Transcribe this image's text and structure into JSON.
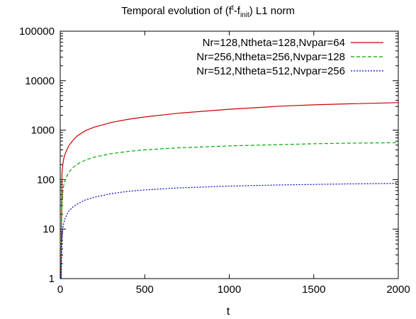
{
  "chart_data": {
    "type": "line",
    "title": "Temporal evolution of (f^t-f_init) L1 norm",
    "title_parts": {
      "pre": "Temporal evolution of (f",
      "sup": "t",
      "mid": "-f",
      "sub": "init",
      "post": ") L1 norm"
    },
    "xlabel": "t",
    "ylabel": "",
    "xlim": [
      0,
      2000
    ],
    "ylim": [
      1,
      100000
    ],
    "yscale": "log",
    "xticks": [
      0,
      500,
      1000,
      1500,
      2000
    ],
    "yticks": [
      1,
      10,
      100,
      1000,
      10000,
      100000
    ],
    "legend_position": "top-right",
    "grid": false,
    "series": [
      {
        "name": "Nr=128,Ntheta=128,Nvpar=64",
        "color": "#cc0000",
        "dash": "solid",
        "x": [
          5,
          10,
          15,
          20,
          30,
          50,
          75,
          100,
          150,
          200,
          300,
          400,
          500,
          700,
          1000,
          1300,
          1500,
          1700,
          2000
        ],
        "y": [
          1,
          130,
          200,
          260,
          340,
          480,
          620,
          760,
          980,
          1150,
          1430,
          1650,
          1850,
          2200,
          2650,
          3050,
          3250,
          3400,
          3600
        ]
      },
      {
        "name": "Nr=256,Ntheta=256,Nvpar=128",
        "color": "#00aa00",
        "dash": "dashed",
        "x": [
          5,
          10,
          15,
          20,
          30,
          50,
          75,
          100,
          150,
          200,
          300,
          400,
          500,
          700,
          1000,
          1300,
          1500,
          1700,
          2000
        ],
        "y": [
          1,
          30,
          55,
          75,
          100,
          140,
          175,
          205,
          250,
          285,
          335,
          370,
          400,
          440,
          480,
          510,
          530,
          545,
          560
        ]
      },
      {
        "name": "Nr=512,Ntheta=512,Nvpar=256",
        "color": "#0000cc",
        "dash": "dotted",
        "x": [
          5,
          10,
          15,
          20,
          30,
          50,
          75,
          100,
          150,
          200,
          300,
          400,
          500,
          700,
          1000,
          1300,
          1500,
          1700,
          2000
        ],
        "y": [
          1,
          7,
          10,
          13,
          17,
          23,
          28,
          32,
          39,
          44,
          52,
          58,
          62,
          68,
          74,
          78,
          80,
          82,
          84
        ]
      }
    ]
  }
}
